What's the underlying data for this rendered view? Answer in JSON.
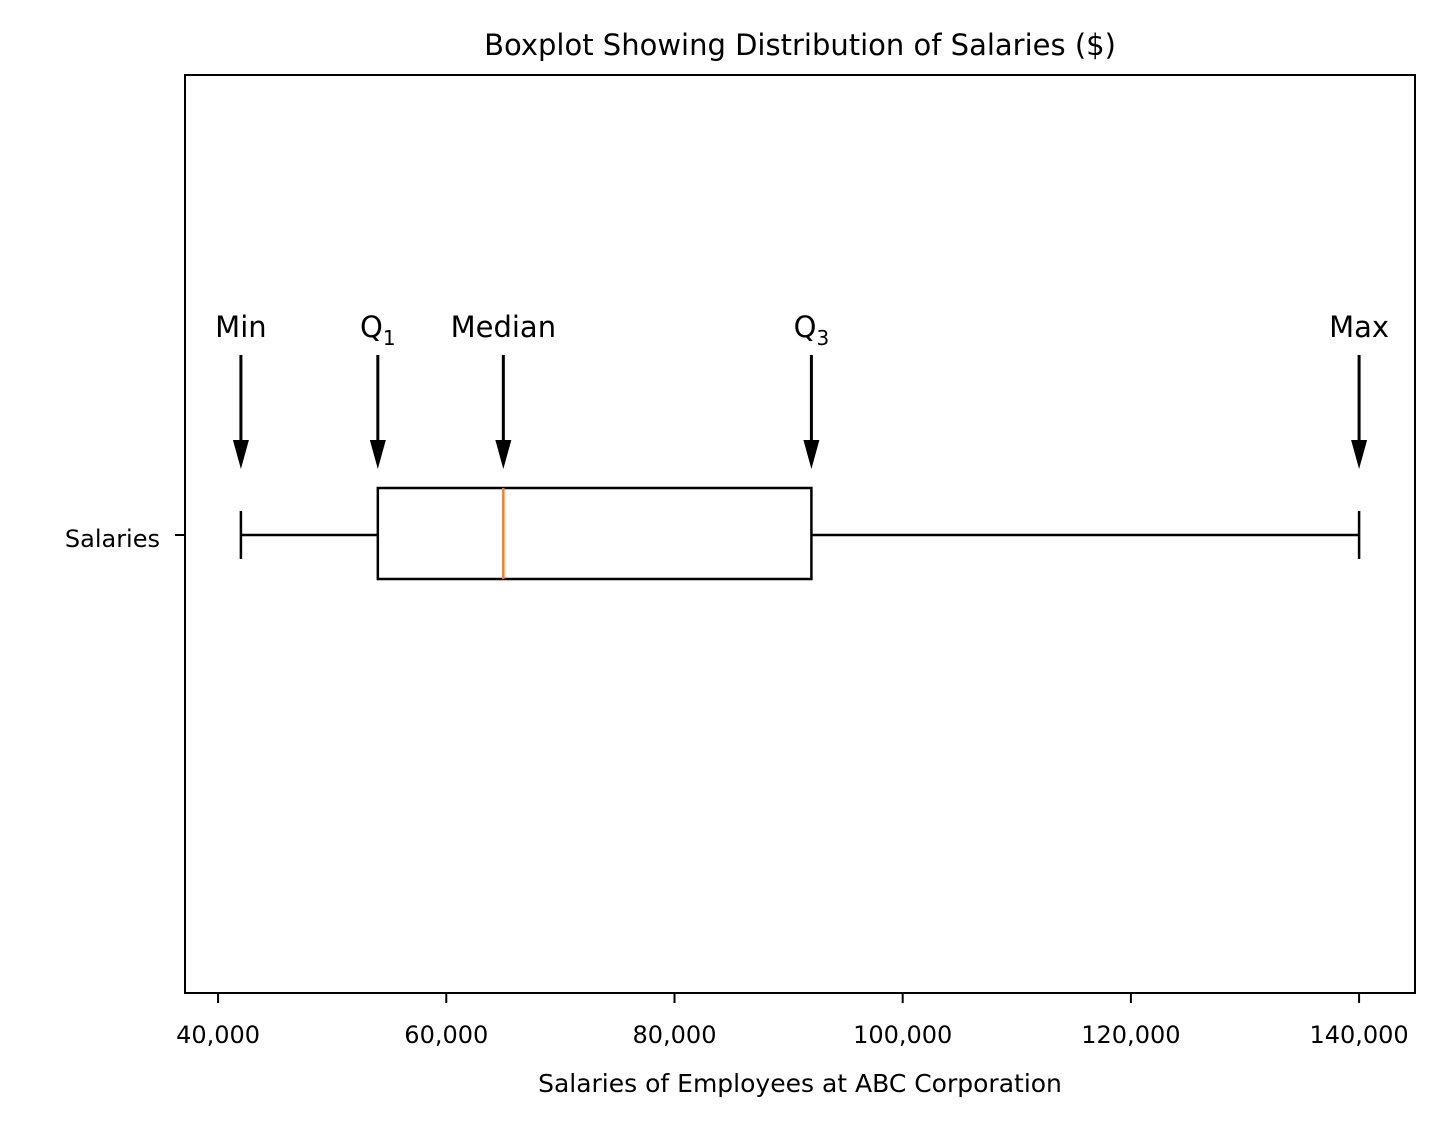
{
  "chart_data": {
    "type": "boxplot",
    "title": "Boxplot Showing Distribution of Salaries ($)",
    "xlabel": "Salaries of Employees at ABC Corporation",
    "ylabel": "",
    "category": "Salaries",
    "orientation": "horizontal",
    "xlim": [
      37100,
      144900
    ],
    "xticks": [
      40000,
      60000,
      80000,
      100000,
      120000,
      140000
    ],
    "xtick_labels": [
      "40,000",
      "60,000",
      "80,000",
      "100,000",
      "120,000",
      "140,000"
    ],
    "grid": false,
    "stats": {
      "min": 42000,
      "q1": 54000,
      "median": 65000,
      "q3": 92000,
      "max": 140000
    },
    "annotations": [
      {
        "label": "Min",
        "sub": "",
        "value": 42000
      },
      {
        "label": "Q",
        "sub": "1",
        "value": 54000
      },
      {
        "label": "Median",
        "sub": "",
        "value": 65000
      },
      {
        "label": "Q",
        "sub": "3",
        "value": 92000
      },
      {
        "label": "Max",
        "sub": "",
        "value": 140000
      }
    ],
    "colors": {
      "box": "#000000",
      "median": "#ff7f0e"
    }
  }
}
